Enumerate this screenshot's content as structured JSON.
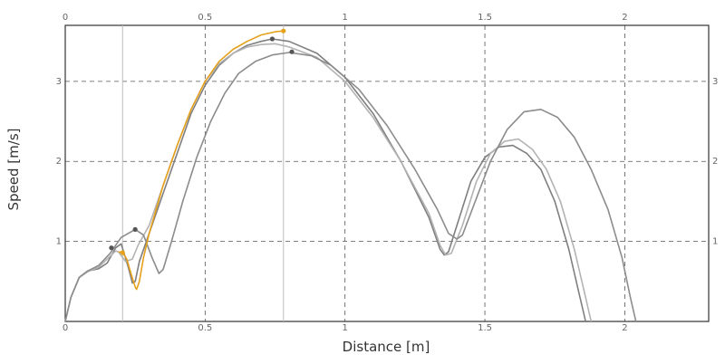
{
  "chart_data": {
    "type": "line",
    "xlabel": "Distance [m]",
    "ylabel": "Speed [m/s]",
    "xlim": [
      0,
      2.3
    ],
    "ylim": [
      0,
      3.7
    ],
    "x_ticks": [
      {
        "value": 0,
        "label": "0"
      },
      {
        "value": 0.5,
        "label": "0.5"
      },
      {
        "value": 1,
        "label": "1"
      },
      {
        "value": 1.5,
        "label": "1.5"
      },
      {
        "value": 2,
        "label": "2"
      }
    ],
    "y_ticks": [
      {
        "value": 1,
        "label": "1"
      },
      {
        "value": 2,
        "label": "2"
      },
      {
        "value": 3,
        "label": "3"
      }
    ],
    "grid": true,
    "vertical_markers": [
      0.205,
      0.78
    ],
    "series": [
      {
        "color": "#7f7f7f",
        "points": [
          [
            0,
            0
          ],
          [
            0.02,
            0.3
          ],
          [
            0.05,
            0.55
          ],
          [
            0.08,
            0.63
          ],
          [
            0.12,
            0.66
          ],
          [
            0.15,
            0.73
          ],
          [
            0.18,
            0.92
          ],
          [
            0.2,
            0.97
          ],
          [
            0.225,
            0.68
          ],
          [
            0.24,
            0.48
          ],
          [
            0.25,
            0.5
          ],
          [
            0.265,
            0.75
          ],
          [
            0.3,
            1.1
          ],
          [
            0.35,
            1.6
          ],
          [
            0.4,
            2.1
          ],
          [
            0.45,
            2.6
          ],
          [
            0.5,
            2.95
          ],
          [
            0.55,
            3.2
          ],
          [
            0.6,
            3.35
          ],
          [
            0.65,
            3.45
          ],
          [
            0.7,
            3.5
          ],
          [
            0.74,
            3.53
          ],
          [
            0.8,
            3.5
          ],
          [
            0.9,
            3.35
          ],
          [
            1.0,
            3.05
          ],
          [
            1.1,
            2.6
          ],
          [
            1.2,
            2.0
          ],
          [
            1.3,
            1.3
          ],
          [
            1.34,
            0.9
          ],
          [
            1.355,
            0.83
          ],
          [
            1.37,
            0.87
          ],
          [
            1.4,
            1.2
          ],
          [
            1.45,
            1.75
          ],
          [
            1.5,
            2.05
          ],
          [
            1.55,
            2.18
          ],
          [
            1.6,
            2.2
          ],
          [
            1.65,
            2.1
          ],
          [
            1.7,
            1.9
          ],
          [
            1.75,
            1.5
          ],
          [
            1.8,
            0.9
          ],
          [
            1.84,
            0.3
          ],
          [
            1.86,
            0
          ]
        ]
      },
      {
        "color": "#b3b3b3",
        "points": [
          [
            0,
            0
          ],
          [
            0.02,
            0.3
          ],
          [
            0.05,
            0.55
          ],
          [
            0.08,
            0.62
          ],
          [
            0.12,
            0.68
          ],
          [
            0.15,
            0.78
          ],
          [
            0.18,
            0.88
          ],
          [
            0.19,
            0.87
          ],
          [
            0.215,
            0.75
          ],
          [
            0.24,
            0.78
          ],
          [
            0.26,
            0.95
          ],
          [
            0.3,
            1.2
          ],
          [
            0.35,
            1.7
          ],
          [
            0.4,
            2.2
          ],
          [
            0.45,
            2.65
          ],
          [
            0.5,
            3.0
          ],
          [
            0.55,
            3.22
          ],
          [
            0.6,
            3.35
          ],
          [
            0.65,
            3.43
          ],
          [
            0.7,
            3.46
          ],
          [
            0.75,
            3.47
          ],
          [
            0.8,
            3.43
          ],
          [
            0.9,
            3.3
          ],
          [
            1.0,
            3.0
          ],
          [
            1.1,
            2.55
          ],
          [
            1.2,
            2.0
          ],
          [
            1.3,
            1.35
          ],
          [
            1.34,
            0.95
          ],
          [
            1.36,
            0.83
          ],
          [
            1.38,
            0.85
          ],
          [
            1.42,
            1.2
          ],
          [
            1.47,
            1.75
          ],
          [
            1.52,
            2.1
          ],
          [
            1.57,
            2.25
          ],
          [
            1.62,
            2.28
          ],
          [
            1.67,
            2.15
          ],
          [
            1.72,
            1.9
          ],
          [
            1.77,
            1.5
          ],
          [
            1.82,
            0.9
          ],
          [
            1.86,
            0.3
          ],
          [
            1.88,
            0
          ]
        ]
      },
      {
        "color": "#8c8c8c",
        "points": [
          [
            0,
            0
          ],
          [
            0.02,
            0.3
          ],
          [
            0.05,
            0.55
          ],
          [
            0.08,
            0.63
          ],
          [
            0.12,
            0.7
          ],
          [
            0.16,
            0.85
          ],
          [
            0.2,
            1.05
          ],
          [
            0.25,
            1.15
          ],
          [
            0.28,
            1.08
          ],
          [
            0.31,
            0.8
          ],
          [
            0.335,
            0.6
          ],
          [
            0.35,
            0.65
          ],
          [
            0.38,
            1.0
          ],
          [
            0.42,
            1.5
          ],
          [
            0.47,
            2.05
          ],
          [
            0.52,
            2.5
          ],
          [
            0.57,
            2.85
          ],
          [
            0.62,
            3.1
          ],
          [
            0.68,
            3.25
          ],
          [
            0.74,
            3.33
          ],
          [
            0.8,
            3.36
          ],
          [
            0.88,
            3.32
          ],
          [
            0.95,
            3.2
          ],
          [
            1.05,
            2.9
          ],
          [
            1.15,
            2.45
          ],
          [
            1.25,
            1.9
          ],
          [
            1.33,
            1.4
          ],
          [
            1.37,
            1.1
          ],
          [
            1.4,
            1.03
          ],
          [
            1.42,
            1.08
          ],
          [
            1.46,
            1.45
          ],
          [
            1.52,
            2.0
          ],
          [
            1.58,
            2.4
          ],
          [
            1.64,
            2.62
          ],
          [
            1.7,
            2.65
          ],
          [
            1.76,
            2.55
          ],
          [
            1.82,
            2.3
          ],
          [
            1.88,
            1.9
          ],
          [
            1.94,
            1.4
          ],
          [
            1.99,
            0.8
          ],
          [
            2.02,
            0.3
          ],
          [
            2.04,
            0
          ]
        ]
      },
      {
        "color": "#e6a11a",
        "points": [
          [
            0.19,
            0.87
          ],
          [
            0.205,
            0.86
          ],
          [
            0.22,
            0.78
          ],
          [
            0.235,
            0.6
          ],
          [
            0.25,
            0.43
          ],
          [
            0.255,
            0.4
          ],
          [
            0.265,
            0.5
          ],
          [
            0.28,
            0.8
          ],
          [
            0.3,
            1.1
          ],
          [
            0.35,
            1.7
          ],
          [
            0.4,
            2.2
          ],
          [
            0.45,
            2.65
          ],
          [
            0.5,
            3.0
          ],
          [
            0.55,
            3.25
          ],
          [
            0.6,
            3.4
          ],
          [
            0.65,
            3.5
          ],
          [
            0.7,
            3.58
          ],
          [
            0.75,
            3.62
          ],
          [
            0.78,
            3.63
          ]
        ]
      }
    ],
    "markers": [
      {
        "x": 0.165,
        "y": 0.92,
        "color": "#555555"
      },
      {
        "x": 0.25,
        "y": 1.15,
        "color": "#555555"
      },
      {
        "x": 0.74,
        "y": 3.53,
        "color": "#555555"
      },
      {
        "x": 0.81,
        "y": 3.37,
        "color": "#555555"
      },
      {
        "x": 0.205,
        "y": 0.86,
        "color": "#e6a11a"
      },
      {
        "x": 0.78,
        "y": 3.63,
        "color": "#e6a11a"
      }
    ]
  }
}
